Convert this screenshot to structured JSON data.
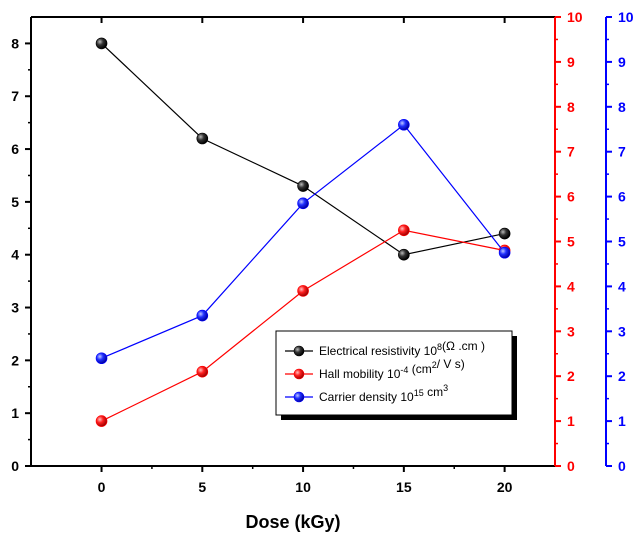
{
  "chart_data": {
    "type": "line",
    "xlabel": "Dose (kGy)",
    "x": [
      0,
      5,
      10,
      15,
      20
    ],
    "xlim": [
      -3.5,
      22.5
    ],
    "xticks": [
      0,
      5,
      10,
      15,
      20
    ],
    "axes": {
      "left": {
        "ylim": [
          0,
          8.5
        ],
        "ticks": [
          0,
          1,
          2,
          3,
          4,
          5,
          6,
          7,
          8
        ],
        "color": "#000000"
      },
      "right1": {
        "ylim": [
          0,
          10
        ],
        "ticks": [
          0,
          1,
          2,
          3,
          4,
          5,
          6,
          7,
          8,
          9,
          10
        ],
        "color": "#ff0000"
      },
      "right2": {
        "ylim": [
          0,
          10
        ],
        "ticks": [
          0,
          1,
          2,
          3,
          4,
          5,
          6,
          7,
          8,
          9,
          10
        ],
        "color": "#0000ff"
      }
    },
    "series": [
      {
        "name": "Electrical resistivity 10",
        "name_sup": "8",
        "name_tail": "(Ω .cm )",
        "axis": "left",
        "color": "#000000",
        "values": [
          8.0,
          6.2,
          5.3,
          4.0,
          4.4
        ]
      },
      {
        "name": "Hall mobility 10",
        "name_sup": "-4",
        "name_tail": " (cm",
        "name_sup2": "2",
        "name_tail2": "/ V s)",
        "axis": "right1",
        "color": "#ff0000",
        "values": [
          1.0,
          2.1,
          3.9,
          5.25,
          4.8
        ]
      },
      {
        "name": "Carrier density 10",
        "name_sup": "15",
        "name_tail": " cm",
        "name_sup2": "3",
        "name_tail2": "",
        "axis": "right2",
        "color": "#0000ff",
        "values": [
          2.4,
          3.35,
          5.85,
          7.6,
          4.75
        ]
      }
    ],
    "legend_position": "bottom-right"
  }
}
